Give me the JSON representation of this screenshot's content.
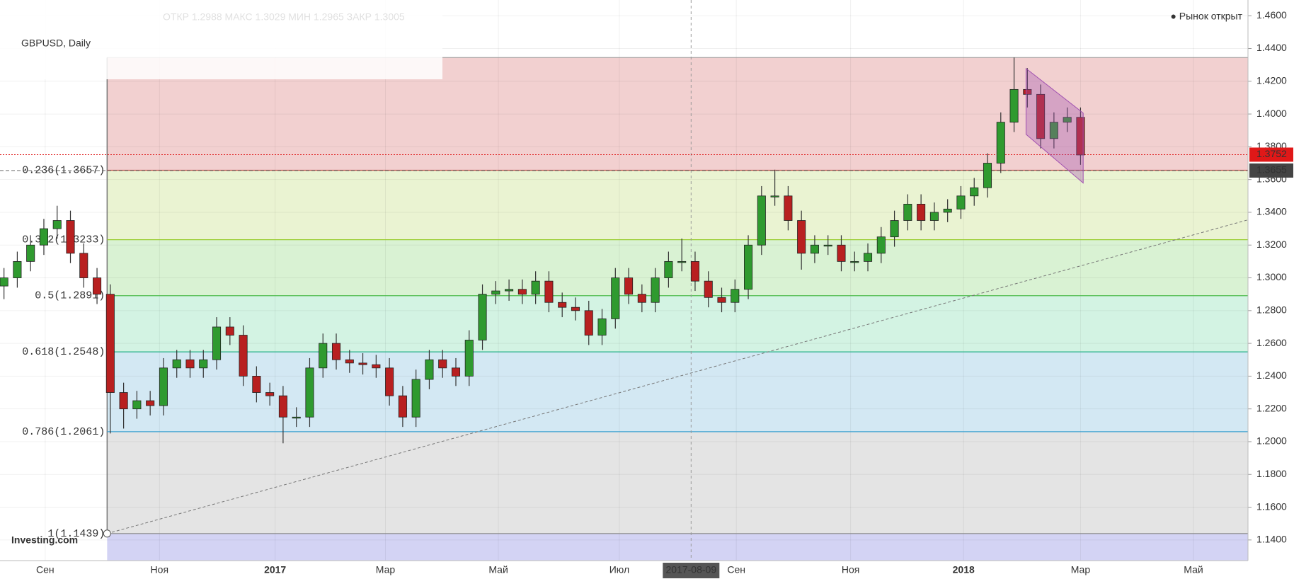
{
  "chart_data": {
    "type": "candlestick",
    "title": "GBPUSD, Daily",
    "header_info": "ОТКР 1.2988 МАКС 1.3029 МИН 1.2965 ЗАКР 1.3005",
    "status": "● Рынок открыт",
    "logo": "Investing.com",
    "up_color": "#2f9a2f",
    "down_color": "#b82020",
    "open": [
      1.295,
      1.3,
      1.31,
      1.32,
      1.33,
      1.335,
      1.315,
      1.3,
      1.29,
      1.23,
      1.22,
      1.225,
      1.222,
      1.245,
      1.25,
      1.245,
      1.25,
      1.27,
      1.265,
      1.24,
      1.23,
      1.228,
      1.215,
      1.215,
      1.245,
      1.26,
      1.25,
      1.248,
      1.247,
      1.245,
      1.228,
      1.215,
      1.238,
      1.25,
      1.245,
      1.24,
      1.262,
      1.29,
      1.292,
      1.293,
      1.29,
      1.298,
      1.285,
      1.282,
      1.28,
      1.265,
      1.275,
      1.3,
      1.29,
      1.285,
      1.3,
      1.31,
      1.31,
      1.298,
      1.288,
      1.285,
      1.293,
      1.32,
      1.35,
      1.35,
      1.335,
      1.315,
      1.32,
      1.32,
      1.31,
      1.31,
      1.315,
      1.325,
      1.335,
      1.345,
      1.335,
      1.34,
      1.342,
      1.35,
      1.355,
      1.37,
      1.395,
      1.415,
      1.412,
      1.385,
      1.395,
      1.398
    ],
    "high": [
      1.306,
      1.316,
      1.326,
      1.336,
      1.344,
      1.341,
      1.321,
      1.306,
      1.296,
      1.236,
      1.231,
      1.231,
      1.251,
      1.256,
      1.256,
      1.256,
      1.276,
      1.276,
      1.271,
      1.246,
      1.236,
      1.234,
      1.221,
      1.251,
      1.266,
      1.266,
      1.256,
      1.254,
      1.253,
      1.251,
      1.234,
      1.244,
      1.256,
      1.256,
      1.251,
      1.268,
      1.296,
      1.298,
      1.299,
      1.299,
      1.304,
      1.304,
      1.291,
      1.288,
      1.286,
      1.281,
      1.306,
      1.306,
      1.296,
      1.306,
      1.316,
      1.324,
      1.316,
      1.304,
      1.294,
      1.299,
      1.326,
      1.356,
      1.366,
      1.356,
      1.341,
      1.326,
      1.326,
      1.326,
      1.316,
      1.321,
      1.331,
      1.341,
      1.351,
      1.351,
      1.346,
      1.348,
      1.356,
      1.361,
      1.376,
      1.401,
      1.4345,
      1.428,
      1.418,
      1.401,
      1.404,
      1.404
    ],
    "low": [
      1.287,
      1.294,
      1.304,
      1.314,
      1.324,
      1.309,
      1.294,
      1.284,
      1.205,
      1.208,
      1.214,
      1.216,
      1.216,
      1.239,
      1.239,
      1.239,
      1.244,
      1.259,
      1.234,
      1.224,
      1.222,
      1.199,
      1.209,
      1.209,
      1.239,
      1.244,
      1.242,
      1.241,
      1.239,
      1.222,
      1.209,
      1.209,
      1.232,
      1.239,
      1.234,
      1.234,
      1.256,
      1.284,
      1.286,
      1.284,
      1.284,
      1.279,
      1.276,
      1.274,
      1.259,
      1.259,
      1.269,
      1.284,
      1.279,
      1.279,
      1.294,
      1.304,
      1.292,
      1.282,
      1.279,
      1.279,
      1.287,
      1.314,
      1.344,
      1.329,
      1.305,
      1.309,
      1.314,
      1.304,
      1.304,
      1.304,
      1.309,
      1.319,
      1.329,
      1.329,
      1.329,
      1.334,
      1.336,
      1.344,
      1.349,
      1.364,
      1.389,
      1.404,
      1.379,
      1.379,
      1.389,
      1.369
    ],
    "close": [
      1.3,
      1.31,
      1.32,
      1.33,
      1.335,
      1.315,
      1.3,
      1.29,
      1.23,
      1.22,
      1.225,
      1.222,
      1.245,
      1.25,
      1.245,
      1.25,
      1.27,
      1.265,
      1.24,
      1.23,
      1.228,
      1.215,
      1.215,
      1.245,
      1.26,
      1.25,
      1.248,
      1.247,
      1.245,
      1.228,
      1.215,
      1.238,
      1.25,
      1.245,
      1.24,
      1.262,
      1.29,
      1.292,
      1.293,
      1.29,
      1.298,
      1.285,
      1.282,
      1.28,
      1.265,
      1.275,
      1.3,
      1.29,
      1.285,
      1.3,
      1.31,
      1.31,
      1.298,
      1.288,
      1.285,
      1.293,
      1.32,
      1.35,
      1.35,
      1.335,
      1.315,
      1.32,
      1.32,
      1.31,
      1.31,
      1.315,
      1.325,
      1.335,
      1.345,
      1.335,
      1.34,
      1.342,
      1.35,
      1.355,
      1.37,
      1.395,
      1.415,
      1.412,
      1.385,
      1.395,
      1.398,
      1.375
    ],
    "xlim": [
      -0.3,
      93.6
    ],
    "xticks": [
      {
        "value": 3.1,
        "label": "Сен"
      },
      {
        "value": 11.7,
        "label": "Ноя"
      },
      {
        "value": 20.4,
        "label": "2017"
      },
      {
        "value": 28.7,
        "label": "Мар"
      },
      {
        "value": 37.2,
        "label": "Май"
      },
      {
        "value": 46.3,
        "label": "Июл"
      },
      {
        "value": 55.1,
        "label": "Сен"
      },
      {
        "value": 63.7,
        "label": "Ноя"
      },
      {
        "value": 72.2,
        "label": "2018"
      },
      {
        "value": 81.0,
        "label": "Мар"
      },
      {
        "value": 89.5,
        "label": "Май"
      }
    ],
    "ylim": [
      1.1274,
      1.4696
    ],
    "yticks": [
      {
        "value": 1.14,
        "label": "1.1400"
      },
      {
        "value": 1.16,
        "label": "1.1600"
      },
      {
        "value": 1.18,
        "label": "1.1800"
      },
      {
        "value": 1.2,
        "label": "1.2000"
      },
      {
        "value": 1.22,
        "label": "1.2200"
      },
      {
        "value": 1.24,
        "label": "1.2400"
      },
      {
        "value": 1.26,
        "label": "1.2600"
      },
      {
        "value": 1.28,
        "label": "1.2800"
      },
      {
        "value": 1.3,
        "label": "1.3000"
      },
      {
        "value": 1.32,
        "label": "1.3200"
      },
      {
        "value": 1.34,
        "label": "1.3400"
      },
      {
        "value": 1.36,
        "label": "1.3600"
      },
      {
        "value": 1.38,
        "label": "1.3800"
      },
      {
        "value": 1.4,
        "label": "1.4000"
      },
      {
        "value": 1.42,
        "label": "1.4200"
      },
      {
        "value": 1.44,
        "label": "1.4400"
      },
      {
        "value": 1.46,
        "label": "1.4600"
      }
    ],
    "grid": true,
    "fib": {
      "start": 7.76,
      "high": 1.4345,
      "high_color": "#f2d0d0",
      "levels": [
        {
          "value": 1.3657,
          "label": "0.236(1.3657)",
          "color": "#c0504d",
          "band": "#eaf3d2"
        },
        {
          "value": 1.3233,
          "label": "0.382(1.3233)",
          "color": "#9acd32",
          "band": "#d9f2d3"
        },
        {
          "value": 1.2891,
          "label": "0.5(1.2891)",
          "color": "#4cbb4c",
          "band": "#d3f3e3"
        },
        {
          "value": 1.2548,
          "label": "0.618(1.2548)",
          "color": "#26b08a",
          "band": "#d3e8f3"
        },
        {
          "value": 1.2061,
          "label": "0.786(1.2061)",
          "color": "#3d9fcf",
          "band": "#e4e4e4"
        },
        {
          "value": 1.1439,
          "label": "1(1.1439)",
          "color": "#888888",
          "band": "#d3d3f4"
        }
      ]
    },
    "trendline": {
      "x": [
        7.76,
        93.6
      ],
      "y": [
        1.1439,
        1.3354
      ]
    },
    "channel": {
      "x": [
        76.9,
        81.2,
        81.2,
        76.9
      ],
      "y": [
        1.4278,
        1.4006,
        1.3579,
        1.3876
      ],
      "color": "#a050b0"
    },
    "crosshair": {
      "x": 51.7,
      "label": "2017-08-09"
    },
    "last_price": 1.3752,
    "marker_price": 1.3655
  }
}
